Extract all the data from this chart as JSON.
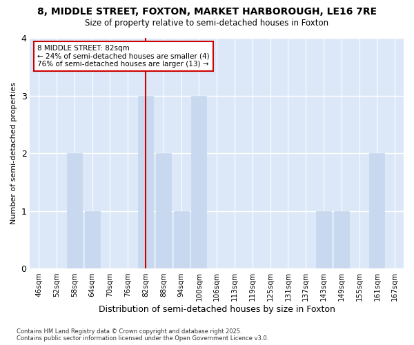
{
  "title_line1": "8, MIDDLE STREET, FOXTON, MARKET HARBOROUGH, LE16 7RE",
  "title_line2": "Size of property relative to semi-detached houses in Foxton",
  "xlabel": "Distribution of semi-detached houses by size in Foxton",
  "ylabel": "Number of semi-detached properties",
  "categories": [
    "46sqm",
    "52sqm",
    "58sqm",
    "64sqm",
    "70sqm",
    "76sqm",
    "82sqm",
    "88sqm",
    "94sqm",
    "100sqm",
    "106sqm",
    "113sqm",
    "119sqm",
    "125sqm",
    "131sqm",
    "137sqm",
    "143sqm",
    "149sqm",
    "155sqm",
    "161sqm",
    "167sqm"
  ],
  "values": [
    0,
    0,
    2,
    1,
    0,
    0,
    3,
    2,
    1,
    3,
    0,
    0,
    0,
    0,
    0,
    0,
    1,
    1,
    0,
    2,
    0
  ],
  "bar_color": "#c8d8ee",
  "bar_edge_color": "#c8d8ee",
  "highlight_index": 6,
  "highlight_line_color": "#cc0000",
  "annotation_text": "8 MIDDLE STREET: 82sqm\n← 24% of semi-detached houses are smaller (4)\n76% of semi-detached houses are larger (13) →",
  "annotation_box_color": "#ffffff",
  "annotation_box_edge_color": "#cc0000",
  "ylim": [
    0,
    4
  ],
  "yticks": [
    0,
    1,
    2,
    3,
    4
  ],
  "plot_bg_color": "#dce8f8",
  "fig_bg_color": "#ffffff",
  "grid_color": "#ffffff",
  "footnote": "Contains HM Land Registry data © Crown copyright and database right 2025.\nContains public sector information licensed under the Open Government Licence v3.0."
}
